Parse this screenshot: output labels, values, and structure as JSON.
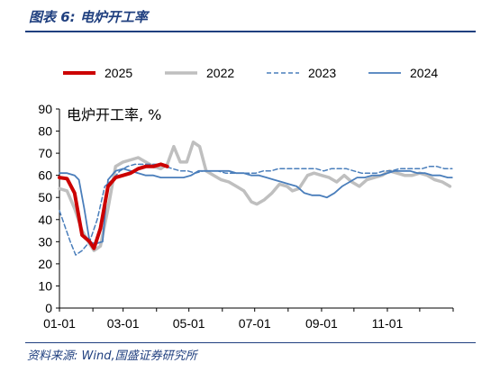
{
  "header": {
    "title": "图表 6:  电炉开工率"
  },
  "footer": {
    "source": "资料来源:  Wind,国盛证券研究所"
  },
  "chart_data": {
    "type": "line",
    "unit_label": "电炉开工率, %",
    "x_ticks": [
      "01-01",
      "03-01",
      "05-01",
      "07-01",
      "09-01",
      "11-01"
    ],
    "x_range_days": [
      0,
      365
    ],
    "x_tick_days": [
      0,
      59,
      120,
      181,
      243,
      304
    ],
    "ylim": [
      0,
      90
    ],
    "y_ticks": [
      0,
      10,
      20,
      30,
      40,
      50,
      60,
      70,
      80,
      90
    ],
    "legend_position": "top",
    "series": [
      {
        "name": "2025",
        "color": "#cc0000",
        "dash": "solid",
        "width": 4,
        "points": [
          [
            0,
            59
          ],
          [
            7,
            58.5
          ],
          [
            14,
            52
          ],
          [
            21,
            33
          ],
          [
            28,
            30
          ],
          [
            32,
            27
          ],
          [
            38,
            36
          ],
          [
            45,
            55
          ],
          [
            52,
            59
          ],
          [
            59,
            60
          ],
          [
            66,
            61
          ],
          [
            73,
            63
          ],
          [
            80,
            64
          ],
          [
            87,
            64
          ],
          [
            94,
            65
          ],
          [
            100,
            64
          ]
        ]
      },
      {
        "name": "2022",
        "color": "#bfbfbf",
        "dash": "solid",
        "width": 3.5,
        "points": [
          [
            0,
            54
          ],
          [
            7,
            53
          ],
          [
            14,
            45
          ],
          [
            21,
            35
          ],
          [
            28,
            29
          ],
          [
            32,
            26
          ],
          [
            38,
            28
          ],
          [
            45,
            45
          ],
          [
            52,
            64
          ],
          [
            59,
            66
          ],
          [
            66,
            67
          ],
          [
            73,
            68
          ],
          [
            80,
            66
          ],
          [
            87,
            64
          ],
          [
            94,
            63
          ],
          [
            100,
            65
          ],
          [
            106,
            73
          ],
          [
            112,
            66
          ],
          [
            118,
            66
          ],
          [
            124,
            75
          ],
          [
            130,
            73
          ],
          [
            136,
            62
          ],
          [
            143,
            60
          ],
          [
            150,
            58
          ],
          [
            157,
            57
          ],
          [
            164,
            55
          ],
          [
            171,
            53
          ],
          [
            178,
            48
          ],
          [
            183,
            47
          ],
          [
            190,
            49
          ],
          [
            197,
            52
          ],
          [
            204,
            56
          ],
          [
            211,
            55
          ],
          [
            216,
            53
          ],
          [
            222,
            54
          ],
          [
            230,
            60
          ],
          [
            236,
            61
          ],
          [
            243,
            60
          ],
          [
            250,
            59
          ],
          [
            257,
            57
          ],
          [
            264,
            60
          ],
          [
            271,
            57
          ],
          [
            278,
            55
          ],
          [
            285,
            58
          ],
          [
            292,
            59
          ],
          [
            299,
            60
          ],
          [
            306,
            62
          ],
          [
            313,
            61
          ],
          [
            320,
            60
          ],
          [
            327,
            60
          ],
          [
            334,
            61
          ],
          [
            341,
            60
          ],
          [
            348,
            58
          ],
          [
            355,
            57
          ],
          [
            362,
            55
          ]
        ]
      },
      {
        "name": "2023",
        "color": "#4a7ebb",
        "dash": "dashed",
        "width": 1.5,
        "points": [
          [
            0,
            44
          ],
          [
            5,
            37
          ],
          [
            10,
            30
          ],
          [
            15,
            24
          ],
          [
            21,
            26
          ],
          [
            28,
            30
          ],
          [
            35,
            40
          ],
          [
            42,
            55
          ],
          [
            49,
            58
          ],
          [
            56,
            62
          ],
          [
            63,
            64
          ],
          [
            70,
            65
          ],
          [
            77,
            65
          ],
          [
            84,
            65
          ],
          [
            91,
            65
          ],
          [
            98,
            64
          ],
          [
            105,
            63
          ],
          [
            112,
            62
          ],
          [
            119,
            62
          ],
          [
            126,
            61
          ],
          [
            133,
            62
          ],
          [
            140,
            62
          ],
          [
            147,
            62
          ],
          [
            154,
            61
          ],
          [
            161,
            61
          ],
          [
            168,
            61
          ],
          [
            175,
            61
          ],
          [
            182,
            61
          ],
          [
            189,
            62
          ],
          [
            196,
            62
          ],
          [
            203,
            63
          ],
          [
            210,
            63
          ],
          [
            217,
            63
          ],
          [
            224,
            63
          ],
          [
            231,
            63
          ],
          [
            238,
            63
          ],
          [
            245,
            62
          ],
          [
            252,
            63
          ],
          [
            259,
            63
          ],
          [
            266,
            63
          ],
          [
            273,
            62
          ],
          [
            280,
            61
          ],
          [
            287,
            61
          ],
          [
            294,
            61
          ],
          [
            301,
            62
          ],
          [
            308,
            62
          ],
          [
            315,
            63
          ],
          [
            322,
            63
          ],
          [
            329,
            63
          ],
          [
            336,
            63
          ],
          [
            343,
            64
          ],
          [
            350,
            64
          ],
          [
            357,
            63
          ],
          [
            364,
            63
          ]
        ]
      },
      {
        "name": "2024",
        "color": "#4a7ebb",
        "dash": "solid",
        "width": 1.8,
        "points": [
          [
            0,
            61
          ],
          [
            7,
            61
          ],
          [
            14,
            60
          ],
          [
            18,
            58
          ],
          [
            23,
            45
          ],
          [
            28,
            30
          ],
          [
            33,
            29
          ],
          [
            40,
            30
          ],
          [
            45,
            58
          ],
          [
            52,
            62
          ],
          [
            59,
            63
          ],
          [
            66,
            62
          ],
          [
            73,
            61
          ],
          [
            80,
            60
          ],
          [
            87,
            60
          ],
          [
            94,
            59
          ],
          [
            101,
            59
          ],
          [
            108,
            59
          ],
          [
            115,
            59
          ],
          [
            122,
            60
          ],
          [
            129,
            62
          ],
          [
            136,
            62
          ],
          [
            143,
            62
          ],
          [
            150,
            62
          ],
          [
            157,
            62
          ],
          [
            164,
            61
          ],
          [
            171,
            61
          ],
          [
            178,
            60
          ],
          [
            185,
            60
          ],
          [
            192,
            59
          ],
          [
            199,
            58
          ],
          [
            206,
            57
          ],
          [
            213,
            56
          ],
          [
            220,
            55
          ],
          [
            227,
            52
          ],
          [
            234,
            51
          ],
          [
            241,
            51
          ],
          [
            248,
            50
          ],
          [
            255,
            52
          ],
          [
            262,
            55
          ],
          [
            269,
            57
          ],
          [
            276,
            59
          ],
          [
            283,
            59
          ],
          [
            290,
            60
          ],
          [
            297,
            60
          ],
          [
            304,
            61
          ],
          [
            311,
            62
          ],
          [
            318,
            62
          ],
          [
            325,
            62
          ],
          [
            332,
            61
          ],
          [
            339,
            61
          ],
          [
            346,
            60
          ],
          [
            353,
            60
          ],
          [
            360,
            59
          ],
          [
            364,
            59
          ]
        ]
      }
    ]
  }
}
